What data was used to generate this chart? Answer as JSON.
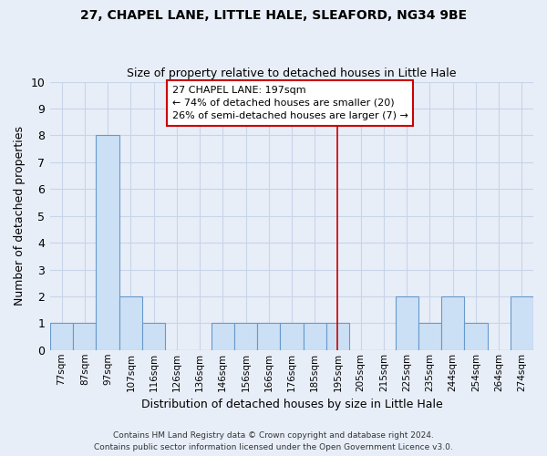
{
  "title1": "27, CHAPEL LANE, LITTLE HALE, SLEAFORD, NG34 9BE",
  "title2": "Size of property relative to detached houses in Little Hale",
  "xlabel": "Distribution of detached houses by size in Little Hale",
  "ylabel": "Number of detached properties",
  "bin_labels": [
    "77sqm",
    "87sqm",
    "97sqm",
    "107sqm",
    "116sqm",
    "126sqm",
    "136sqm",
    "146sqm",
    "156sqm",
    "166sqm",
    "176sqm",
    "185sqm",
    "195sqm",
    "205sqm",
    "215sqm",
    "225sqm",
    "235sqm",
    "244sqm",
    "254sqm",
    "264sqm",
    "274sqm"
  ],
  "bar_heights": [
    1,
    1,
    8,
    2,
    1,
    0,
    0,
    1,
    1,
    1,
    1,
    1,
    1,
    0,
    0,
    2,
    1,
    2,
    1,
    0,
    2
  ],
  "bar_color": "#cce0f5",
  "bar_edge_color": "#6699cc",
  "property_line_x_label": "195sqm",
  "property_line_color": "#cc0000",
  "annotation_title": "27 CHAPEL LANE: 197sqm",
  "annotation_line1": "← 74% of detached houses are smaller (20)",
  "annotation_line2": "26% of semi-detached houses are larger (7) →",
  "annotation_box_color": "#cc0000",
  "ylim": [
    0,
    10
  ],
  "yticks": [
    0,
    1,
    2,
    3,
    4,
    5,
    6,
    7,
    8,
    9,
    10
  ],
  "footnote1": "Contains HM Land Registry data © Crown copyright and database right 2024.",
  "footnote2": "Contains public sector information licensed under the Open Government Licence v3.0.",
  "background_color": "#e8eef8",
  "plot_bg_color": "#e8eef8",
  "grid_color": "#c8d4e8"
}
